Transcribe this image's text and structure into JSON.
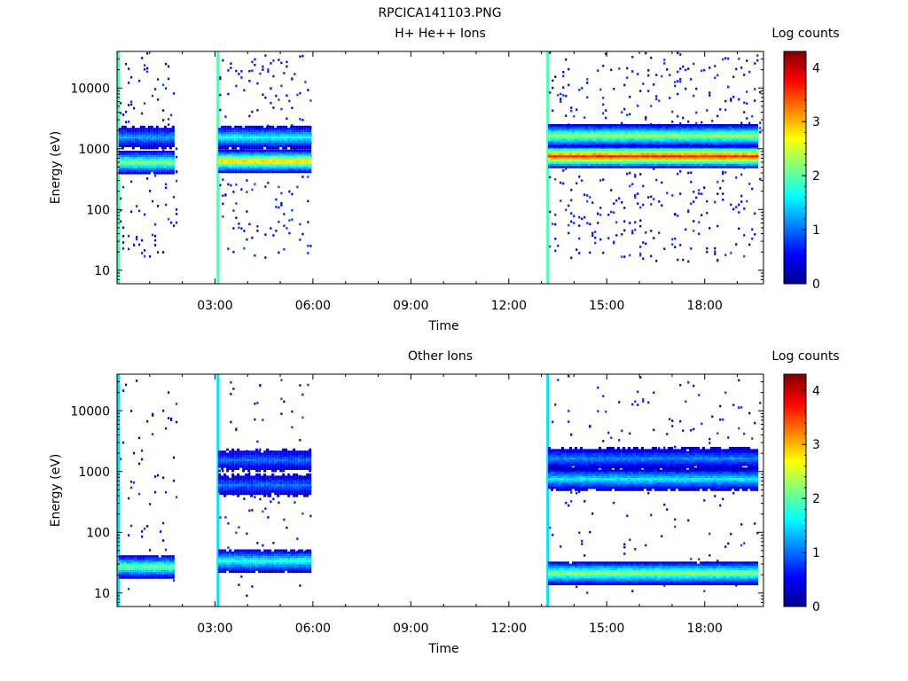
{
  "figure_title": "RPCICA141103.PNG",
  "chart_data": [
    {
      "type": "heatmap",
      "title": "H+ He++ Ions",
      "xlabel": "Time",
      "ylabel": "Energy (eV)",
      "y_scale": "log",
      "ylim": [
        6,
        40000
      ],
      "y_ticks": [
        10,
        100,
        1000,
        10000
      ],
      "y_tick_labels": [
        "10",
        "100",
        "1000",
        "10000"
      ],
      "x_range_hours": [
        0,
        19.8
      ],
      "x_ticks_hours": [
        3,
        6,
        9,
        12,
        15,
        18
      ],
      "x_tick_labels": [
        "03:00",
        "06:00",
        "09:00",
        "12:00",
        "15:00",
        "18:00"
      ],
      "colorbar": {
        "label": "Log counts",
        "range": [
          0,
          4.3
        ],
        "ticks": [
          0,
          1,
          2,
          3,
          4
        ],
        "tick_labels": [
          "0",
          "1",
          "2",
          "3",
          "4"
        ]
      },
      "data_intervals_hours": [
        [
          0.0,
          1.8
        ],
        [
          3.05,
          5.95
        ],
        [
          13.15,
          19.7
        ]
      ],
      "bands": [
        {
          "t": [
            0.05,
            1.75
          ],
          "energy_eV": 620,
          "log_counts": 2.2
        },
        {
          "t": [
            0.05,
            1.75
          ],
          "energy_eV": 1600,
          "log_counts": 1.2
        },
        {
          "t": [
            3.1,
            5.9
          ],
          "energy_eV": 650,
          "log_counts": 2.8
        },
        {
          "t": [
            3.1,
            5.9
          ],
          "energy_eV": 1600,
          "log_counts": 1.7
        },
        {
          "t": [
            13.2,
            19.6
          ],
          "energy_eV": 780,
          "log_counts": 3.6
        },
        {
          "t": [
            13.2,
            19.6
          ],
          "energy_eV": 1700,
          "log_counts": 2.3
        }
      ]
    },
    {
      "type": "heatmap",
      "title": "Other Ions",
      "xlabel": "Time",
      "ylabel": "Energy (eV)",
      "y_scale": "log",
      "ylim": [
        6,
        40000
      ],
      "y_ticks": [
        10,
        100,
        1000,
        10000
      ],
      "y_tick_labels": [
        "10",
        "100",
        "1000",
        "10000"
      ],
      "x_range_hours": [
        0,
        19.8
      ],
      "x_ticks_hours": [
        3,
        6,
        9,
        12,
        15,
        18
      ],
      "x_tick_labels": [
        "03:00",
        "06:00",
        "09:00",
        "12:00",
        "15:00",
        "18:00"
      ],
      "colorbar": {
        "label": "Log counts",
        "range": [
          0,
          4.3
        ],
        "ticks": [
          0,
          1,
          2,
          3,
          4
        ],
        "tick_labels": [
          "0",
          "1",
          "2",
          "3",
          "4"
        ]
      },
      "data_intervals_hours": [
        [
          0.0,
          1.8
        ],
        [
          3.05,
          5.95
        ],
        [
          13.15,
          19.7
        ]
      ],
      "bands": [
        {
          "t": [
            0.05,
            1.75
          ],
          "energy_eV": 28,
          "log_counts": 2.1
        },
        {
          "t": [
            3.1,
            5.9
          ],
          "energy_eV": 35,
          "log_counts": 1.8
        },
        {
          "t": [
            3.1,
            5.9
          ],
          "energy_eV": 620,
          "log_counts": 1.0
        },
        {
          "t": [
            3.1,
            5.9
          ],
          "energy_eV": 1600,
          "log_counts": 1.0
        },
        {
          "t": [
            13.2,
            19.6
          ],
          "energy_eV": 22,
          "log_counts": 2.3
        },
        {
          "t": [
            13.2,
            19.6
          ],
          "energy_eV": 780,
          "log_counts": 1.6
        },
        {
          "t": [
            13.2,
            19.6
          ],
          "energy_eV": 1700,
          "log_counts": 1.1
        }
      ]
    }
  ]
}
